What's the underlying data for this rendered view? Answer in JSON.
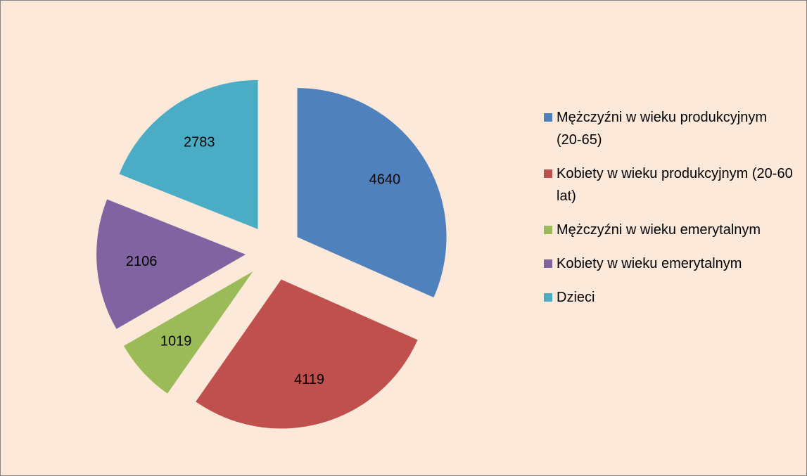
{
  "chart_data": {
    "type": "pie",
    "categories": [
      "Mężczyźni w wieku produkcyjnym  (20-65)",
      "Kobiety w wieku produkcyjnym (20-60 lat)",
      "Mężczyźni w wieku emerytalnym",
      "Kobiety w wieku emerytalnym",
      "Dzieci"
    ],
    "values": [
      4640,
      4119,
      1019,
      2106,
      2783
    ],
    "colors": [
      "#4f81bd",
      "#c0504d",
      "#9bbb59",
      "#8064a2",
      "#4bacc6"
    ],
    "legend": "right"
  }
}
